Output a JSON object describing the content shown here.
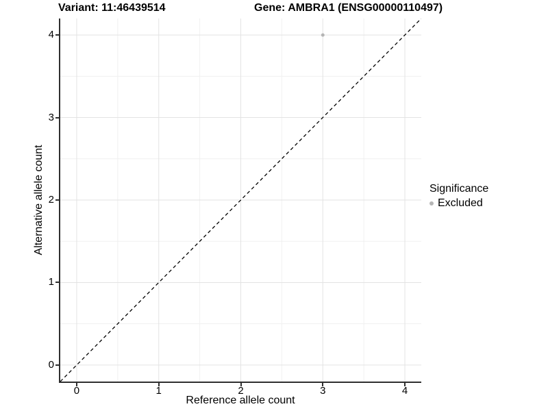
{
  "titles": {
    "variant": "Variant: 11:46439514",
    "gene": "Gene: AMBRA1 (ENSG00000110497)"
  },
  "axes": {
    "x_label": "Reference allele count",
    "y_label": "Alternative allele count"
  },
  "legend": {
    "title": "Significance",
    "items": [
      {
        "label": "Excluded",
        "color": "#b5b5b5"
      }
    ]
  },
  "colors": {
    "background": "#ffffff",
    "axis_line": "#2e2e2e",
    "grid_major": "#e3e3e3",
    "grid_minor": "#f0f0f0",
    "reference_line": "#000000",
    "point": "#b5b5b5",
    "text": "#000000"
  },
  "chart_data": {
    "type": "scatter",
    "title_left": "Variant: 11:46439514",
    "title_right": "Gene: AMBRA1 (ENSG00000110497)",
    "xlabel": "Reference allele count",
    "ylabel": "Alternative allele count",
    "xlim": [
      -0.2,
      4.2
    ],
    "ylim": [
      -0.2,
      4.2
    ],
    "x_ticks": [
      0,
      1,
      2,
      3,
      4
    ],
    "y_ticks": [
      0,
      1,
      2,
      3,
      4
    ],
    "x_minor_ticks": [
      0.5,
      1.5,
      2.5,
      3.5
    ],
    "y_minor_ticks": [
      0.5,
      1.5,
      2.5,
      3.5
    ],
    "grid": true,
    "points": [
      {
        "x": 3,
        "y": 4,
        "significance": "Excluded",
        "color": "#b5b5b5",
        "radius": 2.5
      }
    ],
    "reference_line": {
      "kind": "identity",
      "from": [
        -0.2,
        -0.2
      ],
      "to": [
        4.2,
        4.2
      ],
      "style": "dashed",
      "color": "#000000"
    },
    "legend": {
      "title": "Significance",
      "position": "right",
      "items": [
        {
          "label": "Excluded",
          "color": "#b5b5b5"
        }
      ]
    }
  }
}
